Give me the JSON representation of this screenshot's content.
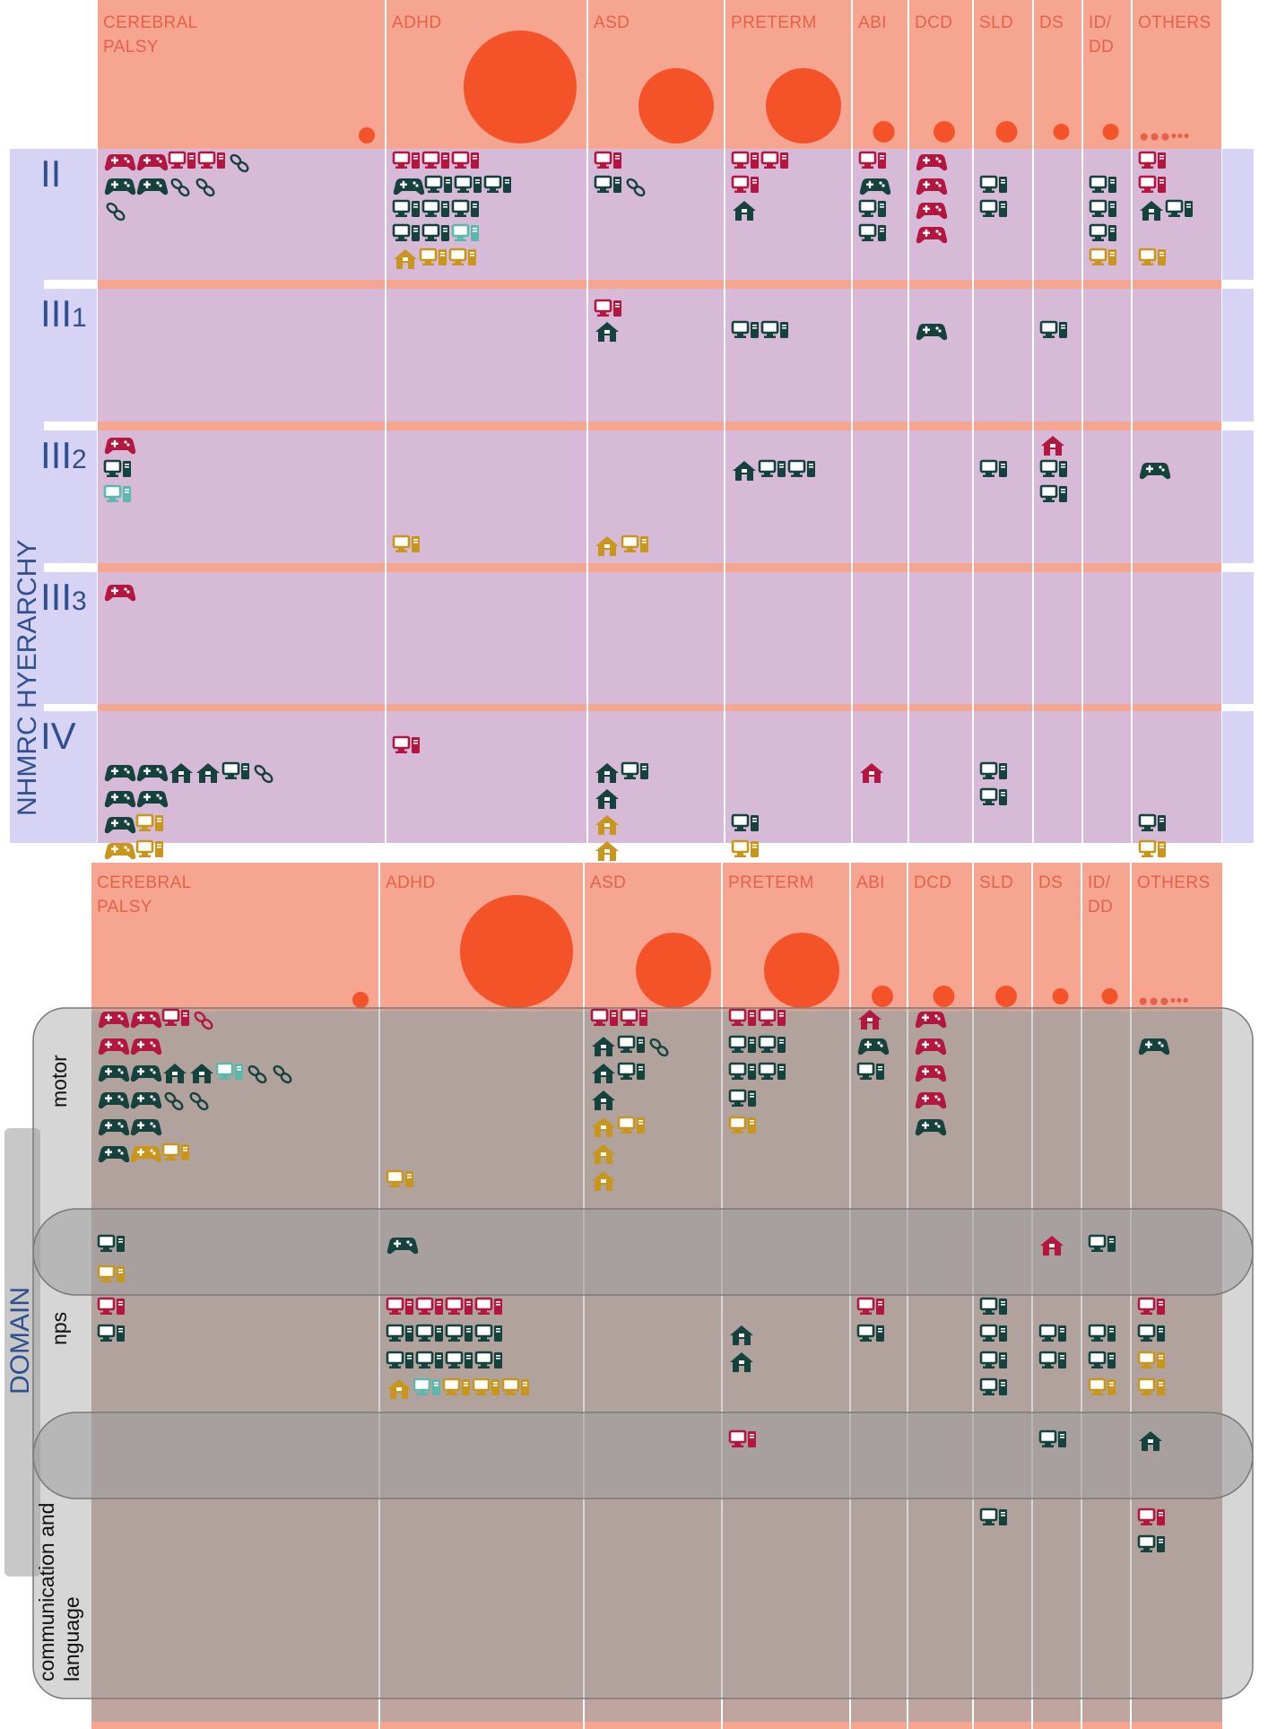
{
  "colors": {
    "header": "#f6a590",
    "bubble": "#f4532a",
    "band": "#d7b9d8",
    "level_strip": "#d7d3f4",
    "domain_band": "#c0a59f",
    "domain_overlay": "#9e9e9e",
    "red": "#b3163e",
    "dark": "#16423d",
    "gold": "#c9961c",
    "teal": "#5cb8ac"
  },
  "conditions": [
    {
      "label_lines": [
        "CEREBRAL",
        "PALSY"
      ],
      "bubble": 5
    },
    {
      "label_lines": [
        "ADHD"
      ],
      "bubble": 4
    },
    {
      "label_lines": [
        "ASD"
      ],
      "bubble": 3
    },
    {
      "label_lines": [
        "PRETERM"
      ],
      "bubble": 3
    },
    {
      "label_lines": [
        "ABI"
      ],
      "bubble": 1
    },
    {
      "label_lines": [
        "DCD"
      ],
      "bubble": 1
    },
    {
      "label_lines": [
        "SLD"
      ],
      "bubble": 1
    },
    {
      "label_lines": [
        "DS"
      ],
      "bubble": 1
    },
    {
      "label_lines": [
        "ID/",
        "DD"
      ],
      "bubble": 1
    },
    {
      "label_lines": [
        "OTHERS"
      ],
      "bubble": 0
    }
  ],
  "hierarchy": {
    "axis_label": "NHMRC HYERARCHY",
    "levels": [
      {
        "main": "II",
        "sub": ""
      },
      {
        "main": "III",
        "sub": "1"
      },
      {
        "main": "III",
        "sub": "2"
      },
      {
        "main": "III",
        "sub": "3"
      },
      {
        "main": "IV",
        "sub": ""
      }
    ]
  },
  "domains": {
    "axis_label": "DOMAIN",
    "labels": [
      {
        "lines": [
          "motor"
        ]
      },
      {
        "lines": [
          "nps"
        ]
      },
      {
        "lines": [
          "communication and",
          "language"
        ]
      }
    ]
  },
  "legend_marks": {
    "others_dots": "●●●•••"
  },
  "top_icons": [
    [
      [
        0,
        0,
        "g",
        "r"
      ],
      [
        0,
        0,
        "g",
        "r"
      ],
      [
        0,
        0,
        "p",
        "r"
      ],
      [
        0,
        0,
        "p",
        "r"
      ],
      [
        0,
        0,
        "l",
        "d"
      ],
      [
        0,
        1,
        "g",
        "d"
      ],
      [
        0,
        1,
        "g",
        "d"
      ],
      [
        0,
        1,
        "l",
        "d"
      ],
      [
        0,
        1,
        "l",
        "d"
      ],
      [
        0,
        2,
        "l",
        "d"
      ],
      [
        1,
        0,
        "p",
        "r"
      ],
      [
        1,
        0,
        "p",
        "r"
      ],
      [
        1,
        0,
        "p",
        "r"
      ],
      [
        1,
        1,
        "g",
        "d"
      ],
      [
        1,
        1,
        "p",
        "d"
      ],
      [
        1,
        1,
        "p",
        "d"
      ],
      [
        1,
        1,
        "p",
        "d"
      ],
      [
        1,
        2,
        "p",
        "d"
      ],
      [
        1,
        2,
        "p",
        "d"
      ],
      [
        1,
        2,
        "p",
        "d"
      ],
      [
        1,
        3,
        "p",
        "d"
      ],
      [
        1,
        3,
        "p",
        "d"
      ],
      [
        1,
        3,
        "p",
        "t"
      ],
      [
        1,
        4,
        "h",
        "y"
      ],
      [
        1,
        4,
        "p",
        "y"
      ],
      [
        1,
        4,
        "p",
        "y"
      ],
      [
        2,
        0,
        "p",
        "r"
      ],
      [
        2,
        1,
        "p",
        "d"
      ],
      [
        2,
        1,
        "l",
        "d"
      ],
      [
        3,
        0,
        "p",
        "r"
      ],
      [
        3,
        0,
        "p",
        "r"
      ],
      [
        3,
        1,
        "p",
        "r"
      ],
      [
        3,
        2,
        "h",
        "d"
      ],
      [
        4,
        0,
        "p",
        "r"
      ],
      [
        4,
        1,
        "g",
        "d"
      ],
      [
        4,
        2,
        "p",
        "d"
      ],
      [
        4,
        3,
        "p",
        "d"
      ],
      [
        5,
        0,
        "g",
        "r"
      ],
      [
        5,
        1,
        "g",
        "r"
      ],
      [
        5,
        2,
        "g",
        "r"
      ],
      [
        5,
        3,
        "g",
        "r"
      ],
      [
        6,
        1,
        "p",
        "d"
      ],
      [
        6,
        2,
        "p",
        "d"
      ],
      [
        8,
        1,
        "p",
        "d"
      ],
      [
        8,
        2,
        "p",
        "d"
      ],
      [
        8,
        3,
        "p",
        "d"
      ],
      [
        8,
        4,
        "p",
        "y"
      ],
      [
        9,
        0,
        "p",
        "r"
      ],
      [
        9,
        1,
        "p",
        "r"
      ],
      [
        9,
        2,
        "h",
        "d"
      ],
      [
        9,
        2,
        "p",
        "d"
      ],
      [
        9,
        4,
        "p",
        "y"
      ]
    ],
    [
      [
        2,
        0,
        "p",
        "r"
      ],
      [
        2,
        1,
        "h",
        "d"
      ],
      [
        3,
        1,
        "p",
        "d"
      ],
      [
        3,
        1,
        "p",
        "d"
      ],
      [
        5,
        1,
        "g",
        "d"
      ],
      [
        7,
        1,
        "p",
        "d"
      ]
    ],
    [
      [
        0,
        0,
        "g",
        "r"
      ],
      [
        0,
        1,
        "p",
        "d"
      ],
      [
        0,
        2,
        "p",
        "t"
      ],
      [
        1,
        4,
        "p",
        "y"
      ],
      [
        2,
        4,
        "h",
        "y"
      ],
      [
        2,
        4,
        "p",
        "y"
      ],
      [
        3,
        1,
        "h",
        "d"
      ],
      [
        3,
        1,
        "p",
        "d"
      ],
      [
        3,
        1,
        "p",
        "d"
      ],
      [
        6,
        1,
        "p",
        "d"
      ],
      [
        7,
        0,
        "h",
        "r"
      ],
      [
        7,
        1,
        "p",
        "d"
      ],
      [
        7,
        2,
        "p",
        "d"
      ],
      [
        9,
        1,
        "g",
        "d"
      ]
    ],
    [
      [
        0,
        0,
        "g",
        "r"
      ]
    ],
    [
      [
        0,
        1,
        "g",
        "d"
      ],
      [
        0,
        1,
        "g",
        "d"
      ],
      [
        0,
        1,
        "h",
        "d"
      ],
      [
        0,
        1,
        "h",
        "d"
      ],
      [
        0,
        1,
        "p",
        "d"
      ],
      [
        0,
        1,
        "l",
        "d"
      ],
      [
        0,
        2,
        "g",
        "d"
      ],
      [
        0,
        2,
        "g",
        "d"
      ],
      [
        0,
        3,
        "g",
        "d"
      ],
      [
        0,
        3,
        "p",
        "y"
      ],
      [
        0,
        4,
        "g",
        "y"
      ],
      [
        0,
        4,
        "p",
        "y"
      ],
      [
        1,
        0,
        "p",
        "r"
      ],
      [
        2,
        1,
        "h",
        "d"
      ],
      [
        2,
        1,
        "p",
        "d"
      ],
      [
        2,
        2,
        "h",
        "d"
      ],
      [
        2,
        3,
        "h",
        "y"
      ],
      [
        2,
        4,
        "h",
        "y"
      ],
      [
        3,
        3,
        "p",
        "d"
      ],
      [
        3,
        4,
        "p",
        "y"
      ],
      [
        4,
        1,
        "h",
        "r"
      ],
      [
        6,
        1,
        "p",
        "d"
      ],
      [
        6,
        2,
        "p",
        "d"
      ],
      [
        9,
        3,
        "p",
        "d"
      ],
      [
        9,
        4,
        "p",
        "y"
      ]
    ]
  ],
  "bottom_icons": [
    [
      [
        0,
        0,
        "g",
        "r"
      ],
      [
        0,
        0,
        "g",
        "r"
      ],
      [
        0,
        0,
        "p",
        "r"
      ],
      [
        0,
        0,
        "l",
        "r"
      ],
      [
        0,
        1,
        "g",
        "r"
      ],
      [
        0,
        1,
        "g",
        "r"
      ],
      [
        0,
        2,
        "g",
        "d"
      ],
      [
        0,
        2,
        "g",
        "d"
      ],
      [
        0,
        2,
        "h",
        "d"
      ],
      [
        0,
        2,
        "h",
        "d"
      ],
      [
        0,
        2,
        "p",
        "t"
      ],
      [
        0,
        2,
        "l",
        "d"
      ],
      [
        0,
        2,
        "l",
        "d"
      ],
      [
        0,
        3,
        "g",
        "d"
      ],
      [
        0,
        3,
        "g",
        "d"
      ],
      [
        0,
        3,
        "l",
        "d"
      ],
      [
        0,
        3,
        "l",
        "d"
      ],
      [
        0,
        4,
        "g",
        "d"
      ],
      [
        0,
        4,
        "g",
        "d"
      ],
      [
        0,
        5,
        "g",
        "d"
      ],
      [
        0,
        5,
        "g",
        "y"
      ],
      [
        0,
        5,
        "p",
        "y"
      ],
      [
        1,
        6,
        "p",
        "y"
      ],
      [
        2,
        0,
        "p",
        "r"
      ],
      [
        2,
        0,
        "p",
        "r"
      ],
      [
        2,
        1,
        "h",
        "d"
      ],
      [
        2,
        1,
        "p",
        "d"
      ],
      [
        2,
        1,
        "l",
        "d"
      ],
      [
        2,
        2,
        "h",
        "d"
      ],
      [
        2,
        2,
        "p",
        "d"
      ],
      [
        2,
        3,
        "h",
        "d"
      ],
      [
        2,
        4,
        "h",
        "y"
      ],
      [
        2,
        4,
        "p",
        "y"
      ],
      [
        2,
        5,
        "h",
        "y"
      ],
      [
        2,
        6,
        "h",
        "y"
      ],
      [
        3,
        0,
        "p",
        "r"
      ],
      [
        3,
        0,
        "p",
        "r"
      ],
      [
        3,
        1,
        "p",
        "d"
      ],
      [
        3,
        1,
        "p",
        "d"
      ],
      [
        3,
        2,
        "p",
        "d"
      ],
      [
        3,
        2,
        "p",
        "d"
      ],
      [
        3,
        3,
        "p",
        "d"
      ],
      [
        3,
        4,
        "p",
        "y"
      ],
      [
        4,
        0,
        "h",
        "r"
      ],
      [
        4,
        1,
        "g",
        "d"
      ],
      [
        4,
        2,
        "p",
        "d"
      ],
      [
        5,
        0,
        "g",
        "r"
      ],
      [
        5,
        1,
        "g",
        "r"
      ],
      [
        5,
        2,
        "g",
        "r"
      ],
      [
        5,
        3,
        "g",
        "r"
      ],
      [
        5,
        4,
        "g",
        "d"
      ],
      [
        9,
        1,
        "g",
        "d"
      ]
    ],
    [
      [
        0,
        0,
        "p",
        "d"
      ],
      [
        0,
        1,
        "p",
        "y"
      ],
      [
        1,
        0,
        "g",
        "d"
      ],
      [
        7,
        0,
        "h",
        "r"
      ],
      [
        8,
        0,
        "p",
        "d"
      ]
    ],
    [
      [
        0,
        0,
        "p",
        "r"
      ],
      [
        0,
        1,
        "p",
        "d"
      ],
      [
        1,
        0,
        "p",
        "r"
      ],
      [
        1,
        0,
        "p",
        "r"
      ],
      [
        1,
        0,
        "p",
        "r"
      ],
      [
        1,
        0,
        "p",
        "r"
      ],
      [
        1,
        1,
        "p",
        "d"
      ],
      [
        1,
        1,
        "p",
        "d"
      ],
      [
        1,
        1,
        "p",
        "d"
      ],
      [
        1,
        1,
        "p",
        "d"
      ],
      [
        1,
        2,
        "p",
        "d"
      ],
      [
        1,
        2,
        "p",
        "d"
      ],
      [
        1,
        2,
        "p",
        "d"
      ],
      [
        1,
        2,
        "p",
        "d"
      ],
      [
        1,
        3,
        "h",
        "y"
      ],
      [
        1,
        3,
        "p",
        "t"
      ],
      [
        1,
        3,
        "p",
        "y"
      ],
      [
        1,
        3,
        "p",
        "y"
      ],
      [
        1,
        3,
        "p",
        "y"
      ],
      [
        3,
        1,
        "h",
        "d"
      ],
      [
        3,
        2,
        "h",
        "d"
      ],
      [
        4,
        0,
        "p",
        "r"
      ],
      [
        4,
        1,
        "p",
        "d"
      ],
      [
        6,
        0,
        "p",
        "d"
      ],
      [
        6,
        1,
        "p",
        "d"
      ],
      [
        6,
        2,
        "p",
        "d"
      ],
      [
        6,
        3,
        "p",
        "d"
      ],
      [
        7,
        1,
        "p",
        "d"
      ],
      [
        7,
        2,
        "p",
        "d"
      ],
      [
        8,
        1,
        "p",
        "d"
      ],
      [
        8,
        2,
        "p",
        "d"
      ],
      [
        8,
        3,
        "p",
        "y"
      ],
      [
        9,
        0,
        "p",
        "r"
      ],
      [
        9,
        1,
        "p",
        "d"
      ],
      [
        9,
        2,
        "p",
        "y"
      ],
      [
        9,
        3,
        "p",
        "y"
      ]
    ],
    [
      [
        3,
        0,
        "p",
        "r"
      ],
      [
        7,
        0,
        "p",
        "d"
      ],
      [
        9,
        0,
        "h",
        "d"
      ]
    ],
    [
      [
        6,
        0,
        "p",
        "d"
      ],
      [
        9,
        0,
        "p",
        "r"
      ],
      [
        9,
        1,
        "p",
        "d"
      ]
    ]
  ]
}
